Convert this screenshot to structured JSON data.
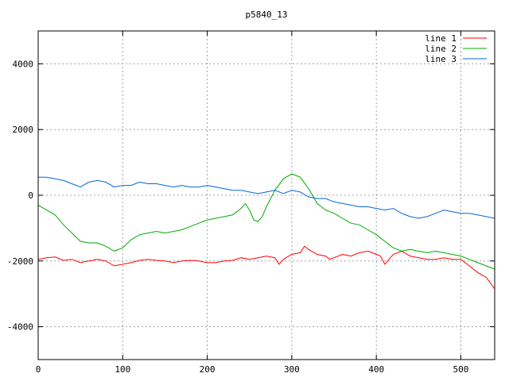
{
  "chart_data": {
    "type": "line",
    "title": "p5840_13",
    "xlabel": "",
    "ylabel": "",
    "xlim": [
      0,
      540
    ],
    "ylim": [
      -5000,
      5000
    ],
    "xticks": [
      0,
      100,
      200,
      300,
      400,
      500
    ],
    "yticks": [
      -4000,
      -2000,
      0,
      2000,
      4000
    ],
    "grid": true,
    "legend_position": "top-right",
    "series": [
      {
        "name": "line 1",
        "color": "#ff0000",
        "points": [
          [
            0,
            -1950
          ],
          [
            10,
            -1900
          ],
          [
            20,
            -1880
          ],
          [
            30,
            -1980
          ],
          [
            40,
            -1950
          ],
          [
            50,
            -2050
          ],
          [
            60,
            -2000
          ],
          [
            70,
            -1950
          ],
          [
            80,
            -2000
          ],
          [
            90,
            -2150
          ],
          [
            100,
            -2100
          ],
          [
            110,
            -2050
          ],
          [
            120,
            -1980
          ],
          [
            130,
            -1950
          ],
          [
            140,
            -1980
          ],
          [
            150,
            -2000
          ],
          [
            160,
            -2050
          ],
          [
            170,
            -2000
          ],
          [
            180,
            -1980
          ],
          [
            190,
            -2000
          ],
          [
            200,
            -2050
          ],
          [
            210,
            -2050
          ],
          [
            220,
            -2000
          ],
          [
            230,
            -1980
          ],
          [
            240,
            -1900
          ],
          [
            250,
            -1950
          ],
          [
            260,
            -1900
          ],
          [
            270,
            -1850
          ],
          [
            280,
            -1900
          ],
          [
            285,
            -2100
          ],
          [
            290,
            -1950
          ],
          [
            300,
            -1800
          ],
          [
            310,
            -1750
          ],
          [
            315,
            -1550
          ],
          [
            320,
            -1650
          ],
          [
            330,
            -1800
          ],
          [
            340,
            -1850
          ],
          [
            345,
            -1950
          ],
          [
            350,
            -1900
          ],
          [
            360,
            -1800
          ],
          [
            370,
            -1850
          ],
          [
            380,
            -1750
          ],
          [
            390,
            -1700
          ],
          [
            400,
            -1800
          ],
          [
            405,
            -1850
          ],
          [
            410,
            -2100
          ],
          [
            420,
            -1800
          ],
          [
            430,
            -1700
          ],
          [
            440,
            -1850
          ],
          [
            450,
            -1900
          ],
          [
            460,
            -1950
          ],
          [
            470,
            -1950
          ],
          [
            480,
            -1900
          ],
          [
            490,
            -1950
          ],
          [
            500,
            -1950
          ],
          [
            510,
            -2150
          ],
          [
            520,
            -2350
          ],
          [
            530,
            -2500
          ],
          [
            540,
            -2850
          ]
        ]
      },
      {
        "name": "line 2",
        "color": "#00aa00",
        "points": [
          [
            0,
            -300
          ],
          [
            10,
            -450
          ],
          [
            20,
            -600
          ],
          [
            30,
            -900
          ],
          [
            40,
            -1150
          ],
          [
            50,
            -1400
          ],
          [
            60,
            -1450
          ],
          [
            70,
            -1450
          ],
          [
            80,
            -1550
          ],
          [
            90,
            -1700
          ],
          [
            100,
            -1600
          ],
          [
            110,
            -1350
          ],
          [
            120,
            -1200
          ],
          [
            130,
            -1150
          ],
          [
            140,
            -1100
          ],
          [
            150,
            -1150
          ],
          [
            160,
            -1100
          ],
          [
            170,
            -1050
          ],
          [
            180,
            -950
          ],
          [
            190,
            -850
          ],
          [
            200,
            -750
          ],
          [
            210,
            -700
          ],
          [
            220,
            -650
          ],
          [
            230,
            -600
          ],
          [
            240,
            -400
          ],
          [
            245,
            -250
          ],
          [
            250,
            -450
          ],
          [
            255,
            -750
          ],
          [
            260,
            -800
          ],
          [
            265,
            -650
          ],
          [
            270,
            -350
          ],
          [
            280,
            150
          ],
          [
            290,
            500
          ],
          [
            300,
            650
          ],
          [
            310,
            550
          ],
          [
            320,
            200
          ],
          [
            330,
            -250
          ],
          [
            340,
            -450
          ],
          [
            350,
            -550
          ],
          [
            360,
            -700
          ],
          [
            370,
            -850
          ],
          [
            380,
            -900
          ],
          [
            390,
            -1050
          ],
          [
            400,
            -1200
          ],
          [
            410,
            -1400
          ],
          [
            420,
            -1600
          ],
          [
            430,
            -1700
          ],
          [
            440,
            -1650
          ],
          [
            450,
            -1700
          ],
          [
            460,
            -1750
          ],
          [
            470,
            -1700
          ],
          [
            480,
            -1750
          ],
          [
            490,
            -1800
          ],
          [
            500,
            -1850
          ],
          [
            510,
            -1950
          ],
          [
            520,
            -2050
          ],
          [
            530,
            -2150
          ],
          [
            540,
            -2250
          ]
        ]
      },
      {
        "name": "line 3",
        "color": "#0066dd",
        "points": [
          [
            0,
            550
          ],
          [
            10,
            550
          ],
          [
            20,
            500
          ],
          [
            30,
            450
          ],
          [
            40,
            350
          ],
          [
            50,
            250
          ],
          [
            60,
            400
          ],
          [
            70,
            450
          ],
          [
            80,
            400
          ],
          [
            90,
            250
          ],
          [
            100,
            300
          ],
          [
            110,
            300
          ],
          [
            120,
            400
          ],
          [
            130,
            350
          ],
          [
            140,
            350
          ],
          [
            150,
            300
          ],
          [
            160,
            250
          ],
          [
            170,
            300
          ],
          [
            180,
            250
          ],
          [
            190,
            250
          ],
          [
            200,
            300
          ],
          [
            210,
            250
          ],
          [
            220,
            200
          ],
          [
            230,
            150
          ],
          [
            240,
            150
          ],
          [
            250,
            100
          ],
          [
            260,
            50
          ],
          [
            270,
            100
          ],
          [
            280,
            150
          ],
          [
            290,
            50
          ],
          [
            300,
            150
          ],
          [
            310,
            100
          ],
          [
            320,
            -50
          ],
          [
            330,
            -100
          ],
          [
            340,
            -100
          ],
          [
            350,
            -200
          ],
          [
            360,
            -250
          ],
          [
            370,
            -300
          ],
          [
            380,
            -350
          ],
          [
            390,
            -350
          ],
          [
            400,
            -400
          ],
          [
            410,
            -450
          ],
          [
            420,
            -400
          ],
          [
            430,
            -550
          ],
          [
            440,
            -650
          ],
          [
            450,
            -700
          ],
          [
            460,
            -650
          ],
          [
            470,
            -550
          ],
          [
            480,
            -450
          ],
          [
            490,
            -500
          ],
          [
            500,
            -550
          ],
          [
            510,
            -550
          ],
          [
            520,
            -600
          ],
          [
            530,
            -650
          ],
          [
            540,
            -700
          ]
        ]
      }
    ]
  }
}
